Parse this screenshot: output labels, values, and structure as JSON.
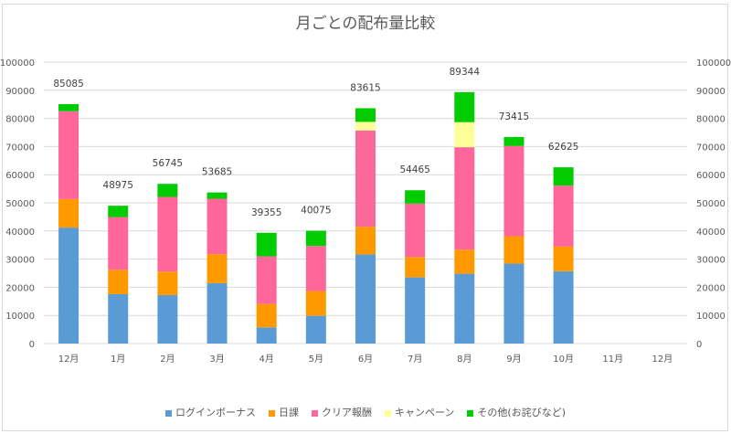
{
  "chart_data": {
    "type": "bar",
    "stacked": true,
    "title": "月ごとの配布量比較",
    "categories": [
      "12月",
      "1月",
      "2月",
      "3月",
      "4月",
      "5月",
      "6月",
      "7月",
      "8月",
      "9月",
      "10月",
      "11月",
      "12月"
    ],
    "ylim": [
      0,
      100000
    ],
    "yticks": [
      "0",
      "10000",
      "20000",
      "30000",
      "40000",
      "50000",
      "60000",
      "70000",
      "80000",
      "90000",
      "100000"
    ],
    "y_axis_both_sides": true,
    "grid": true,
    "legend_position": "bottom",
    "series": [
      {
        "name": "ログインボーナス",
        "color": "#5b9bd5",
        "values": [
          41200,
          17550,
          17200,
          21450,
          5740,
          9860,
          31640,
          23510,
          24810,
          28390,
          25680,
          null,
          null
        ]
      },
      {
        "name": "日課",
        "color": "#ff9900",
        "values": [
          10150,
          8650,
          8370,
          10290,
          8340,
          8780,
          9860,
          7260,
          8560,
          9750,
          8770,
          null,
          null
        ]
      },
      {
        "name": "クリア報酬",
        "color": "#ff6699",
        "values": [
          31200,
          18760,
          26530,
          19720,
          16910,
          16030,
          34230,
          18960,
          36400,
          32070,
          21670,
          null,
          null
        ]
      },
      {
        "name": "キャンペーン",
        "color": "#ffff99",
        "values": [
          0,
          0,
          0,
          0,
          0,
          0,
          3040,
          0,
          8890,
          0,
          0,
          null,
          null
        ]
      },
      {
        "name": "その他(お詫びなど)",
        "color": "#00cc00",
        "values": [
          2535,
          4015,
          4645,
          2225,
          8365,
          5405,
          4845,
          4735,
          10684,
          3205,
          6505,
          null,
          null
        ]
      }
    ],
    "totals": [
      "85085",
      "48975",
      "56745",
      "53685",
      "39355",
      "40075",
      "83615",
      "54465",
      "89344",
      "73415",
      "62625",
      null,
      null
    ]
  }
}
